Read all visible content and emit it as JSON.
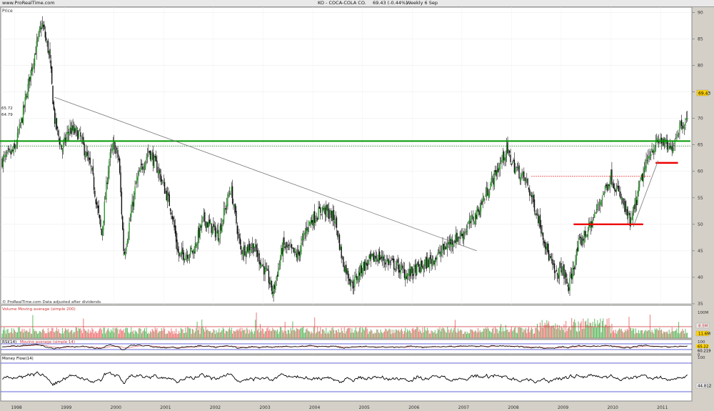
{
  "app": {
    "site": "www.ProRealTime.com",
    "title": "KO - COCA-COLA CO.",
    "last_change": "69.43 (-0.44%)",
    "period": "Weekly 6 Sep"
  },
  "panels": {
    "price": {
      "label": "Price",
      "footer": "© ProRealTime.com  Data adjusted after dividends",
      "last_value_label": "69.43",
      "level_labels": [
        "65.72",
        "64.79"
      ]
    },
    "volume": {
      "label": "Volume  Moving average (simple 200)",
      "top_label": "100M",
      "ma_value_label": "8.5M",
      "last_value_label": "11.6M"
    },
    "rsi": {
      "label": "RSI(14)",
      "ma_label": "Moving average (simple 14)",
      "scale_top": "100",
      "value_labels": [
        "65.22",
        "60.219"
      ],
      "scale_bottom": "0"
    },
    "mfi": {
      "label": "Money Flow(14)",
      "scale_top": "100",
      "value_label": "44.812"
    }
  },
  "chart_data": [
    {
      "type": "candlestick",
      "panel": "price",
      "title": "KO - COCA-COLA CO.",
      "ylabel": "Price",
      "ylim": [
        35,
        91
      ],
      "y_ticks": [
        35,
        40,
        45,
        50,
        55,
        60,
        65,
        70,
        75,
        80,
        85,
        90
      ],
      "x_ticks": [
        "1998",
        "1999",
        "2000",
        "2001",
        "2002",
        "2003",
        "2004",
        "2005",
        "2006",
        "2007",
        "2008",
        "2009",
        "2010",
        "2011"
      ],
      "close_path": [
        {
          "x": 1997.75,
          "y": 62
        },
        {
          "x": 1998.0,
          "y": 64
        },
        {
          "x": 1998.15,
          "y": 70
        },
        {
          "x": 1998.35,
          "y": 80
        },
        {
          "x": 1998.55,
          "y": 88
        },
        {
          "x": 1998.7,
          "y": 82
        },
        {
          "x": 1998.8,
          "y": 70
        },
        {
          "x": 1998.95,
          "y": 64
        },
        {
          "x": 1999.1,
          "y": 68
        },
        {
          "x": 1999.3,
          "y": 67
        },
        {
          "x": 1999.55,
          "y": 60
        },
        {
          "x": 1999.75,
          "y": 48
        },
        {
          "x": 1999.9,
          "y": 62
        },
        {
          "x": 2000.0,
          "y": 65
        },
        {
          "x": 2000.1,
          "y": 62
        },
        {
          "x": 2000.2,
          "y": 44
        },
        {
          "x": 2000.45,
          "y": 58
        },
        {
          "x": 2000.7,
          "y": 64
        },
        {
          "x": 2000.9,
          "y": 60
        },
        {
          "x": 2001.15,
          "y": 53
        },
        {
          "x": 2001.3,
          "y": 44
        },
        {
          "x": 2001.6,
          "y": 45
        },
        {
          "x": 2001.8,
          "y": 51
        },
        {
          "x": 2002.1,
          "y": 48
        },
        {
          "x": 2002.35,
          "y": 57
        },
        {
          "x": 2002.55,
          "y": 45
        },
        {
          "x": 2002.8,
          "y": 46
        },
        {
          "x": 2003.1,
          "y": 40
        },
        {
          "x": 2003.2,
          "y": 37
        },
        {
          "x": 2003.4,
          "y": 46
        },
        {
          "x": 2003.7,
          "y": 44
        },
        {
          "x": 2003.9,
          "y": 50
        },
        {
          "x": 2004.2,
          "y": 53
        },
        {
          "x": 2004.45,
          "y": 51
        },
        {
          "x": 2004.6,
          "y": 43
        },
        {
          "x": 2004.8,
          "y": 38.5
        },
        {
          "x": 2005.0,
          "y": 42
        },
        {
          "x": 2005.3,
          "y": 44
        },
        {
          "x": 2005.7,
          "y": 42
        },
        {
          "x": 2005.9,
          "y": 40.5
        },
        {
          "x": 2006.2,
          "y": 42
        },
        {
          "x": 2006.5,
          "y": 44
        },
        {
          "x": 2006.8,
          "y": 47
        },
        {
          "x": 2007.0,
          "y": 48
        },
        {
          "x": 2007.3,
          "y": 52
        },
        {
          "x": 2007.6,
          "y": 58
        },
        {
          "x": 2007.9,
          "y": 64
        },
        {
          "x": 2008.05,
          "y": 61
        },
        {
          "x": 2008.3,
          "y": 58
        },
        {
          "x": 2008.55,
          "y": 51
        },
        {
          "x": 2008.75,
          "y": 44
        },
        {
          "x": 2008.9,
          "y": 40
        },
        {
          "x": 2009.0,
          "y": 42
        },
        {
          "x": 2009.15,
          "y": 38
        },
        {
          "x": 2009.35,
          "y": 46
        },
        {
          "x": 2009.6,
          "y": 50
        },
        {
          "x": 2009.85,
          "y": 56
        },
        {
          "x": 2010.0,
          "y": 59
        },
        {
          "x": 2010.2,
          "y": 55
        },
        {
          "x": 2010.4,
          "y": 50
        },
        {
          "x": 2010.6,
          "y": 58
        },
        {
          "x": 2010.8,
          "y": 64
        },
        {
          "x": 2011.0,
          "y": 66
        },
        {
          "x": 2011.2,
          "y": 64
        },
        {
          "x": 2011.4,
          "y": 69
        },
        {
          "x": 2011.55,
          "y": 69.43
        }
      ],
      "annotations": [
        {
          "kind": "resistance",
          "color": "#009900",
          "y": 65.72,
          "x_from": 1997.7,
          "x_to": 2011.6
        },
        {
          "kind": "dotted_level",
          "color": "#006600",
          "y": 64.79,
          "x_from": 1997.7,
          "x_to": 2011.6
        },
        {
          "kind": "trendline",
          "color": "#777777",
          "from": {
            "x": 1998.8,
            "y": 74
          },
          "to": {
            "x": 2007.3,
            "y": 45
          }
        },
        {
          "kind": "support",
          "color": "#ee0000",
          "y": 50,
          "x_from": 2009.25,
          "x_to": 2010.65
        },
        {
          "kind": "dotted_level",
          "color": "#ee0000",
          "y": 59.1,
          "x_from": 2008.4,
          "x_to": 2010.8
        },
        {
          "kind": "support",
          "color": "#ee0000",
          "y": 61.6,
          "x_from": 2010.9,
          "x_to": 2011.35
        },
        {
          "kind": "trendline",
          "color": "#777777",
          "from": {
            "x": 2010.45,
            "y": 49.5
          },
          "to": {
            "x": 2010.95,
            "y": 62
          }
        }
      ]
    },
    {
      "type": "bar",
      "panel": "volume",
      "title": "Volume",
      "ma_label": "Moving average (simple 200)",
      "ylim": [
        0,
        100
      ],
      "unit": "M",
      "ma_value": 8.5,
      "last_value": 11.6
    },
    {
      "type": "line",
      "panel": "rsi",
      "title": "RSI(14)",
      "ylim": [
        0,
        100
      ],
      "levels": [
        70,
        30
      ],
      "last_values": [
        65.22,
        60.219
      ]
    },
    {
      "type": "line",
      "panel": "mfi",
      "title": "Money Flow(14)",
      "ylim": [
        0,
        100
      ],
      "levels": [
        80,
        20
      ],
      "last_value": 44.812
    }
  ]
}
